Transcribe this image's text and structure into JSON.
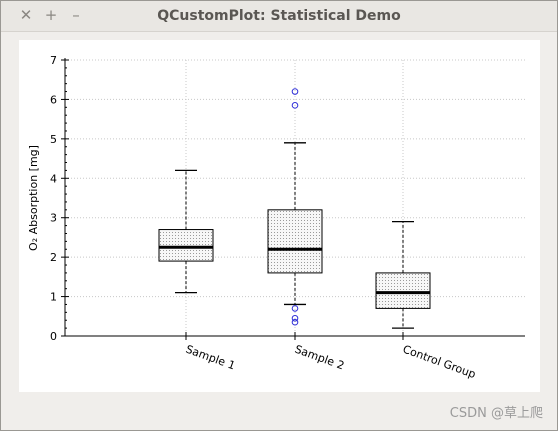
{
  "window": {
    "title": "QCustomPlot: Statistical Demo",
    "buttons": [
      "✕",
      "+",
      "–"
    ]
  },
  "chart_data": {
    "type": "boxplot",
    "ylabel": "O₂ Absorption [mg]",
    "xlabel": "",
    "ylim": [
      0,
      7
    ],
    "yticks": [
      "0",
      "1",
      "2",
      "3",
      "4",
      "5",
      "6",
      "7"
    ],
    "grid": true,
    "categories": [
      "Sample 1",
      "Sample 2",
      "Control Group"
    ],
    "boxes": [
      {
        "name": "Sample 1",
        "min": 1.1,
        "q1": 1.9,
        "median": 2.25,
        "q3": 2.7,
        "max": 4.2,
        "outliers": []
      },
      {
        "name": "Sample 2",
        "min": 0.8,
        "q1": 1.6,
        "median": 2.2,
        "q3": 3.2,
        "max": 4.9,
        "outliers": [
          0.7,
          0.45,
          0.35,
          5.85,
          6.2
        ]
      },
      {
        "name": "Control Group",
        "min": 0.2,
        "q1": 0.7,
        "median": 1.1,
        "q3": 1.6,
        "max": 2.9,
        "outliers": []
      }
    ],
    "colors": {
      "box_fill": "#f7f7f7",
      "box_stroke": "#000000",
      "median": "#000000",
      "outlier": "#2f2fd8",
      "grid": "#c8c8c8"
    }
  },
  "watermark": "CSDN @草上爬"
}
